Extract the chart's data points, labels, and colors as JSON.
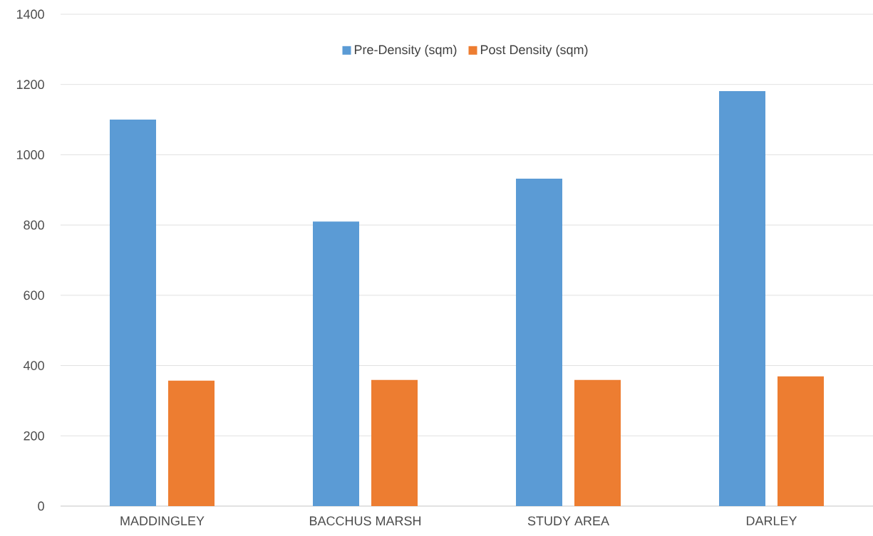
{
  "chart_data": {
    "type": "bar",
    "categories": [
      "MADDINGLEY",
      "BACCHUS MARSH",
      "STUDY AREA",
      "DARLEY"
    ],
    "series": [
      {
        "name": "Pre-Density (sqm)",
        "color": "#5b9bd5",
        "values": [
          1100,
          810,
          932,
          1181
        ]
      },
      {
        "name": "Post Density (sqm)",
        "color": "#ed7d31",
        "values": [
          357,
          359,
          359,
          369
        ]
      }
    ],
    "ylim": [
      0,
      1400
    ],
    "yticks": [
      0,
      200,
      400,
      600,
      800,
      1000,
      1200,
      1400
    ],
    "grid": "y",
    "legend": "top"
  }
}
